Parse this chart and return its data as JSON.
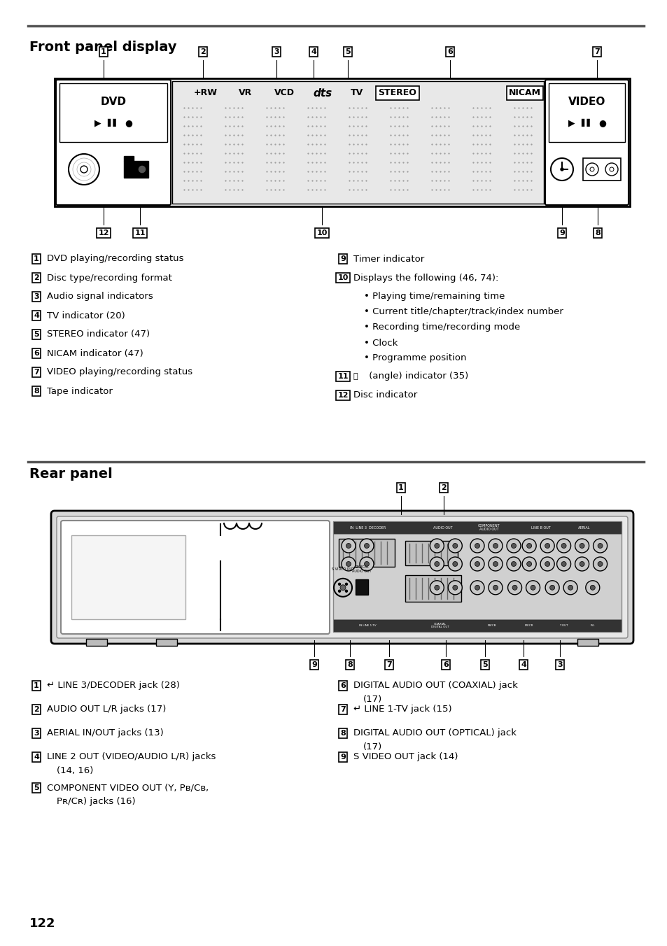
{
  "bg_color": "#ffffff",
  "page_num": "122",
  "front_panel_title": "Front panel display",
  "rear_panel_title": "Rear panel",
  "front_labels_left": [
    [
      "1",
      "DVD playing/recording status"
    ],
    [
      "2",
      "Disc type/recording format"
    ],
    [
      "3",
      "Audio signal indicators"
    ],
    [
      "4",
      "TV indicator (20)"
    ],
    [
      "5",
      "STEREO indicator (47)"
    ],
    [
      "6",
      "NICAM indicator (47)"
    ],
    [
      "7",
      "VIDEO playing/recording status"
    ],
    [
      "8",
      "Tape indicator"
    ]
  ],
  "rear_labels_left": [
    [
      "1",
      "↵ LINE 3/DECODER jack (28)"
    ],
    [
      "2",
      "AUDIO OUT L/R jacks (17)"
    ],
    [
      "3",
      "AERIAL IN/OUT jacks (13)"
    ],
    [
      "4",
      "LINE 2 OUT (VIDEO/AUDIO L/R) jacks",
      "(14, 16)"
    ],
    [
      "5",
      "COMPONENT VIDEO OUT (Y, PB/CB,",
      "PR/CR) jacks (16)"
    ]
  ],
  "rear_labels_right": [
    [
      "6",
      "DIGITAL AUDIO OUT (COAXIAL) jack",
      "(17)"
    ],
    [
      "7",
      "↵ LINE 1-TV jack (15)"
    ],
    [
      "8",
      "DIGITAL AUDIO OUT (OPTICAL) jack",
      "(17)"
    ],
    [
      "9",
      "S VIDEO OUT jack (14)"
    ]
  ]
}
